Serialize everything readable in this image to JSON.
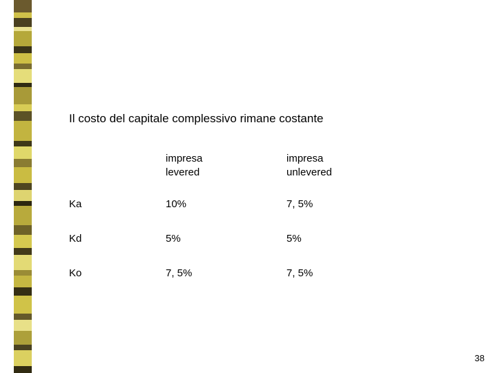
{
  "title": "Il costo del capitale complessivo rimane costante",
  "table": {
    "headers": [
      "",
      "impresa\nlevered",
      "impresa\nunlevered"
    ],
    "rows": [
      [
        "Ka",
        "10%",
        "7, 5%"
      ],
      [
        "Kd",
        "5%",
        "5%"
      ],
      [
        "Ko",
        "7, 5%",
        "7, 5%"
      ]
    ]
  },
  "page_number": "38",
  "deco_colors": [
    {
      "c": "#6b5a2e",
      "h": 18
    },
    {
      "c": "#d0c14a",
      "h": 8
    },
    {
      "c": "#4a4020",
      "h": 14
    },
    {
      "c": "#e8e090",
      "h": 6
    },
    {
      "c": "#b5a83a",
      "h": 22
    },
    {
      "c": "#3a3418",
      "h": 10
    },
    {
      "c": "#cdbf45",
      "h": 16
    },
    {
      "c": "#7a6d30",
      "h": 8
    },
    {
      "c": "#e5dd7a",
      "h": 20
    },
    {
      "c": "#2f2a12",
      "h": 6
    },
    {
      "c": "#a89a38",
      "h": 26
    },
    {
      "c": "#d8cc55",
      "h": 10
    },
    {
      "c": "#5c5226",
      "h": 14
    },
    {
      "c": "#c2b440",
      "h": 30
    },
    {
      "c": "#3e3818",
      "h": 8
    },
    {
      "c": "#e0d86a",
      "h": 18
    },
    {
      "c": "#8a7c32",
      "h": 12
    },
    {
      "c": "#cabc42",
      "h": 24
    },
    {
      "c": "#4f4620",
      "h": 10
    },
    {
      "c": "#ded470",
      "h": 16
    },
    {
      "c": "#2c2710",
      "h": 8
    },
    {
      "c": "#b8aa3c",
      "h": 28
    },
    {
      "c": "#6e6228",
      "h": 14
    },
    {
      "c": "#d5c950",
      "h": 20
    },
    {
      "c": "#423a1a",
      "h": 10
    },
    {
      "c": "#e3da75",
      "h": 22
    },
    {
      "c": "#9a8c36",
      "h": 8
    },
    {
      "c": "#c5b742",
      "h": 18
    },
    {
      "c": "#352f14",
      "h": 12
    },
    {
      "c": "#d0c348",
      "h": 26
    },
    {
      "c": "#655a2a",
      "h": 10
    },
    {
      "c": "#e8e088",
      "h": 16
    },
    {
      "c": "#ada03a",
      "h": 20
    },
    {
      "c": "#4a4220",
      "h": 8
    },
    {
      "c": "#dbd060",
      "h": 24
    },
    {
      "c": "#312b12",
      "h": 10
    }
  ]
}
